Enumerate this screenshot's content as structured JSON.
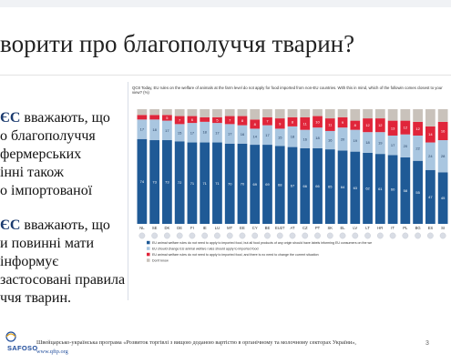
{
  "slide": {
    "title": "ворити про благополуччя тварин?",
    "bullets": [
      {
        "bold": "ЄС",
        "lines": [
          " вважають, що",
          "о благополуччя",
          "фермерських",
          "інні також",
          "о імпортованої"
        ]
      },
      {
        "bold": "ЄС",
        "lines": [
          " вважають, що",
          "и повинні мати",
          "інформує",
          "застосовані правила",
          "ччя тварин."
        ]
      }
    ],
    "footer": {
      "logo": "SAFOSO",
      "text": "Швейцарсько-українська програма «Розвиток торгівлі з вищою доданою вартістю в органічному та молочному секторах України»,",
      "url": "www.qftp.org",
      "page": "3"
    }
  },
  "chart_data": {
    "type": "bar",
    "question": "QC8 Today, EU rules on the welfare of animals at the farm level do not apply for food imported from non-EU countries. With this in mind, which of the followin comes closest to your view? (%)",
    "stacked": true,
    "horizontal": false,
    "categories": [
      "NL",
      "SE",
      "DK",
      "DE",
      "FI",
      "IE",
      "LU",
      "MT",
      "EE",
      "CY",
      "BE",
      "EU27",
      "AT",
      "CZ",
      "PT",
      "SK",
      "EL",
      "LV",
      "LT",
      "HR",
      "IT",
      "PL",
      "BG",
      "ES",
      "SI"
    ],
    "series": [
      {
        "name": "EU animal welfare rules do not need to apply to imported food, but all food products of any origin should have labels informing EU consumers on the welfare rules applied",
        "color": "#1f5a96",
        "values": [
          74,
          73,
          73,
          72,
          71,
          71,
          71,
          70,
          70,
          69,
          69,
          68,
          67,
          66,
          66,
          65,
          64,
          63,
          62,
          61,
          60,
          58,
          55,
          47,
          45
        ]
      },
      {
        "name": "EU should change EU animal welfare rules should apply to imported food",
        "color": "#a9c6e0",
        "values": [
          17,
          18,
          17,
          15,
          17,
          18,
          17,
          17,
          16,
          14,
          17,
          15,
          18,
          16,
          18,
          16,
          20,
          19,
          18,
          19,
          17,
          20,
          22,
          24,
          28
        ]
      },
      {
        "name": "EU animal welfare rules do not need to apply to imported food, and there is no need to change the current situation",
        "color": "#e0253a",
        "values": [
          4,
          4,
          5,
          7,
          6,
          4,
          5,
          7,
          8,
          8,
          7,
          9,
          8,
          11,
          10,
          11,
          9,
          8,
          12,
          12,
          13,
          12,
          12,
          14,
          16
        ]
      },
      {
        "name": "Don't know",
        "color": "#c9c2bb",
        "values": [
          5,
          5,
          5,
          6,
          6,
          7,
          7,
          6,
          6,
          9,
          7,
          8,
          7,
          7,
          6,
          8,
          7,
          10,
          8,
          8,
          10,
          10,
          11,
          15,
          11
        ]
      }
    ],
    "ylim": [
      0,
      100
    ]
  }
}
